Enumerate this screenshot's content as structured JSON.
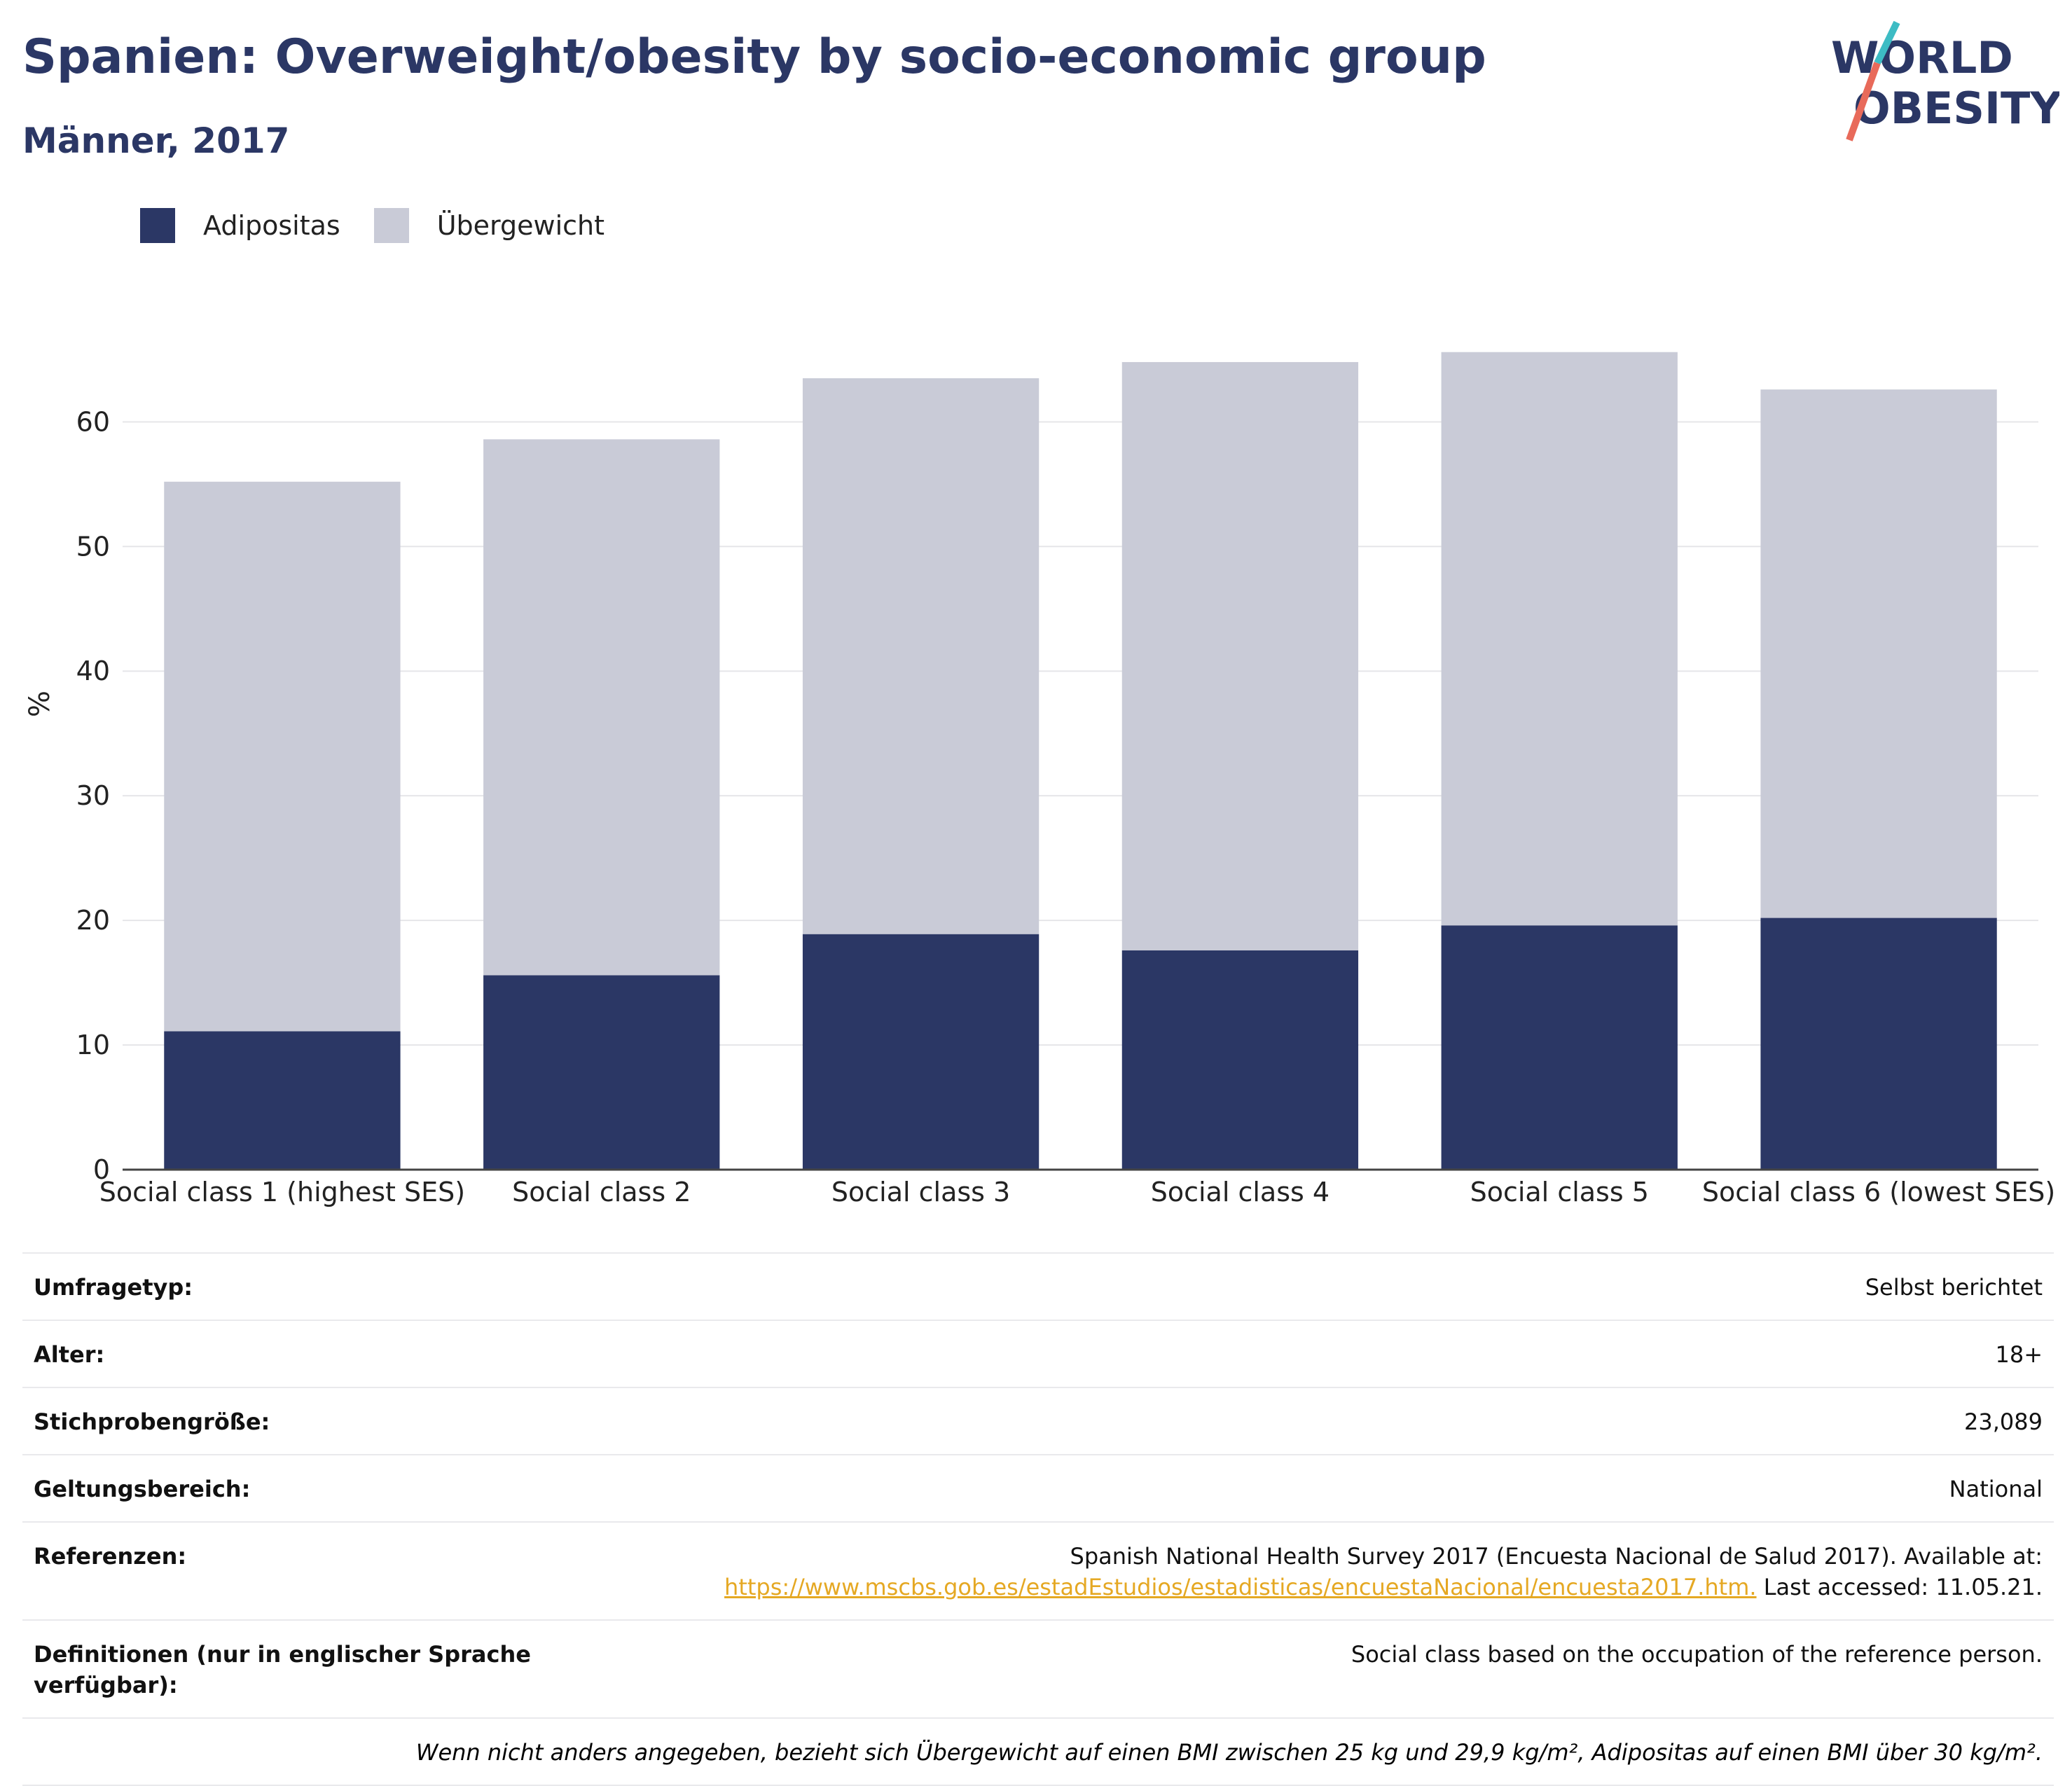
{
  "header": {
    "title": "Spanien: Overweight/obesity by socio-economic group",
    "subtitle": "Männer, 2017"
  },
  "logo": {
    "line1": "WORLD",
    "line2": "OBESITY"
  },
  "colors": {
    "obesity": "#2b3765",
    "overweight": "#c9cbd7",
    "title": "#2b3765",
    "link": "#e5a823",
    "grid": "#e6e6e9"
  },
  "legend": {
    "obesity": "Adipositas",
    "overweight": "Übergewicht"
  },
  "chart_data": {
    "type": "bar",
    "stacked": true,
    "categories": [
      "Social class 1 (highest SES)",
      "Social class 2",
      "Social class 3",
      "Social class 4",
      "Social class 5",
      "Social class 6 (lowest SES)"
    ],
    "series": [
      {
        "name": "Adipositas",
        "values": [
          11.1,
          15.6,
          18.9,
          17.6,
          19.6,
          20.2
        ]
      },
      {
        "name": "Übergewicht",
        "values": [
          44.1,
          43.0,
          44.6,
          47.2,
          46.0,
          42.4
        ]
      }
    ],
    "ylabel": "%",
    "xlabel": "",
    "ylim": [
      0,
      68
    ],
    "yticks": [
      0,
      10,
      20,
      30,
      40,
      50,
      60
    ],
    "grid": true,
    "legend_position": "top-left"
  },
  "meta": {
    "survey_type_label": "Umfragetyp:",
    "survey_type_value": "Selbst berichtet",
    "age_label": "Alter:",
    "age_value": "18+",
    "sample_label": "Stichprobengröße:",
    "sample_value": "23,089",
    "scope_label": "Geltungsbereich:",
    "scope_value": "National",
    "references_label": "Referenzen:",
    "references_text": "Spanish National Health Survey 2017 (Encuesta Nacional de Salud 2017). Available at:",
    "references_link": "https://www.mscbs.gob.es/estadEstudios/estadisticas/encuestaNacional/encuesta2017.htm.",
    "references_accessed": " Last accessed: 11.05.21.",
    "definitions_label": "Definitionen (nur in englischer Sprache verfügbar):",
    "definitions_value": "Social class based on the occupation of the reference person.",
    "footnote": "Wenn nicht anders angegeben, bezieht sich Übergewicht auf einen BMI zwischen 25 kg und 29,9 kg/m², Adipositas auf einen BMI über 30 kg/m²."
  }
}
